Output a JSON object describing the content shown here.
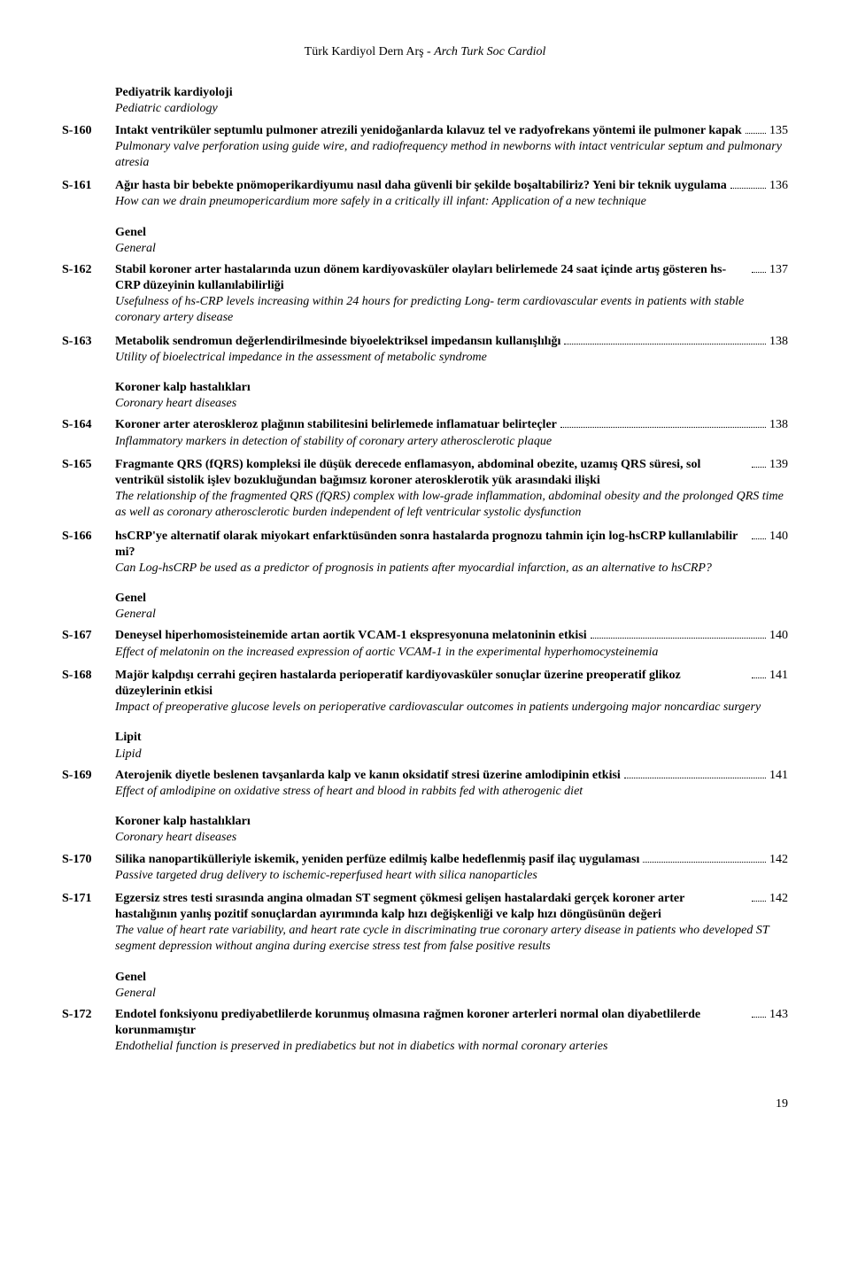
{
  "running_head_left": "Türk Kardiyol Dern Arş - ",
  "running_head_right": "Arch Turk Soc Cardiol",
  "page_number": "19",
  "sections": [
    {
      "heading_tr": "Pediyatrik kardiyoloji",
      "heading_en": "Pediatric cardiology",
      "entries": [
        {
          "code": "S-160",
          "title_tr": "Intakt ventriküler septumlu pulmoner atrezili yenidoğanlarda kılavuz tel ve radyofrekans yöntemi ile pulmoner kapak",
          "page": "135",
          "title_en": "Pulmonary valve perforation using guide wire, and radiofrequency method in newborns with intact ventricular septum and pulmonary atresia"
        },
        {
          "code": "S-161",
          "title_tr": "Ağır hasta bir bebekte pnömoperikardiyumu nasıl daha güvenli bir şekilde boşaltabiliriz? Yeni bir teknik uygulama",
          "page": "136",
          "title_en": "How can we drain pneumopericardium more safely in a critically ill infant: Application of a new technique"
        }
      ]
    },
    {
      "heading_tr": "Genel",
      "heading_en": "General",
      "entries": [
        {
          "code": "S-162",
          "title_tr": "Stabil koroner arter hastalarında uzun dönem kardiyovasküler olayları belirlemede 24 saat içinde artış gösteren hs-CRP düzeyinin kullanılabilirliği",
          "page": "137",
          "title_en": "Usefulness of hs-CRP levels increasing within 24 hours for predicting Long- term cardiovascular events in patients with stable coronary artery disease"
        },
        {
          "code": "S-163",
          "title_tr": "Metabolik sendromun değerlendirilmesinde biyoelektriksel impedansın kullanışlılığı",
          "page": "138",
          "title_en": "Utility of bioelectrical impedance in the assessment of metabolic syndrome"
        }
      ]
    },
    {
      "heading_tr": "Koroner kalp hastalıkları",
      "heading_en": "Coronary heart diseases",
      "entries": [
        {
          "code": "S-164",
          "title_tr": "Koroner arter ateroskleroz plağının stabilitesini belirlemede inflamatuar belirteçler",
          "page": "138",
          "title_en": "Inflammatory markers in detection of stability of coronary artery atherosclerotic plaque"
        },
        {
          "code": "S-165",
          "title_tr": "Fragmante QRS (fQRS) kompleksi ile düşük derecede enflamasyon, abdominal obezite, uzamış QRS süresi, sol ventrikül sistolik işlev bozukluğundan bağımsız koroner aterosklerotik yük arasındaki ilişki",
          "page": "139",
          "title_en": "The relationship of the fragmented QRS (fQRS) complex with low-grade inflammation, abdominal obesity and the prolonged QRS time as well as coronary atherosclerotic burden independent of left ventricular systolic dysfunction"
        },
        {
          "code": "S-166",
          "title_tr": "hsCRP'ye alternatif olarak miyokart enfarktüsünden sonra hastalarda prognozu tahmin için log-hsCRP kullanılabilir mi?",
          "page": "140",
          "title_en": "Can Log-hsCRP be used as a predictor of prognosis in patients after myocardial infarction, as an alternative to hsCRP?"
        }
      ]
    },
    {
      "heading_tr": "Genel",
      "heading_en": "General",
      "entries": [
        {
          "code": "S-167",
          "title_tr": "Deneysel hiperhomosisteinemide artan aortik VCAM-1 ekspresyonuna melatoninin etkisi",
          "page": "140",
          "title_en": "Effect of melatonin on the increased expression of aortic VCAM-1 in the experimental hyperhomocysteinemia"
        },
        {
          "code": "S-168",
          "title_tr": "Majör kalpdışı cerrahi geçiren hastalarda perioperatif kardiyovasküler sonuçlar üzerine preoperatif glikoz düzeylerinin etkisi",
          "page": "141",
          "title_en": "Impact of preoperative glucose levels on perioperative cardiovascular outcomes in patients undergoing major noncardiac surgery"
        }
      ]
    },
    {
      "heading_tr": "Lipit",
      "heading_en": "Lipid",
      "entries": [
        {
          "code": "S-169",
          "title_tr": "Aterojenik diyetle beslenen tavşanlarda kalp ve kanın oksidatif stresi üzerine amlodipinin etkisi",
          "page": "141",
          "title_en": "Effect of amlodipine on oxidative stress of heart and blood in rabbits fed with atherogenic diet"
        }
      ]
    },
    {
      "heading_tr": "Koroner kalp hastalıkları",
      "heading_en": "Coronary heart diseases",
      "entries": [
        {
          "code": "S-170",
          "title_tr": "Silika nanopartikülleriyle iskemik, yeniden perfüze edilmiş kalbe hedeflenmiş pasif ilaç uygulaması",
          "page": "142",
          "title_en": "Passive targeted drug delivery to ischemic-reperfused heart with silica nanoparticles"
        },
        {
          "code": "S-171",
          "title_tr": "Egzersiz stres testi sırasında angina olmadan ST segment çökmesi gelişen hastalardaki gerçek koroner arter hastalığının yanlış pozitif sonuçlardan ayırımında kalp hızı değişkenliği ve kalp hızı döngüsünün değeri",
          "page": "142",
          "title_en": "The value of heart rate variability, and heart rate cycle in discriminating true coronary artery disease in patients who developed ST segment depression without angina during exercise stress test from false positive results"
        }
      ]
    },
    {
      "heading_tr": "Genel",
      "heading_en": "General",
      "entries": [
        {
          "code": "S-172",
          "title_tr": "Endotel fonksiyonu prediyabetlilerde korunmuş olmasına rağmen koroner arterleri normal olan diyabetlilerde korunmamıştır",
          "page": "143",
          "title_en": "Endothelial function is preserved in prediabetics but not in diabetics with normal coronary arteries"
        }
      ]
    }
  ]
}
